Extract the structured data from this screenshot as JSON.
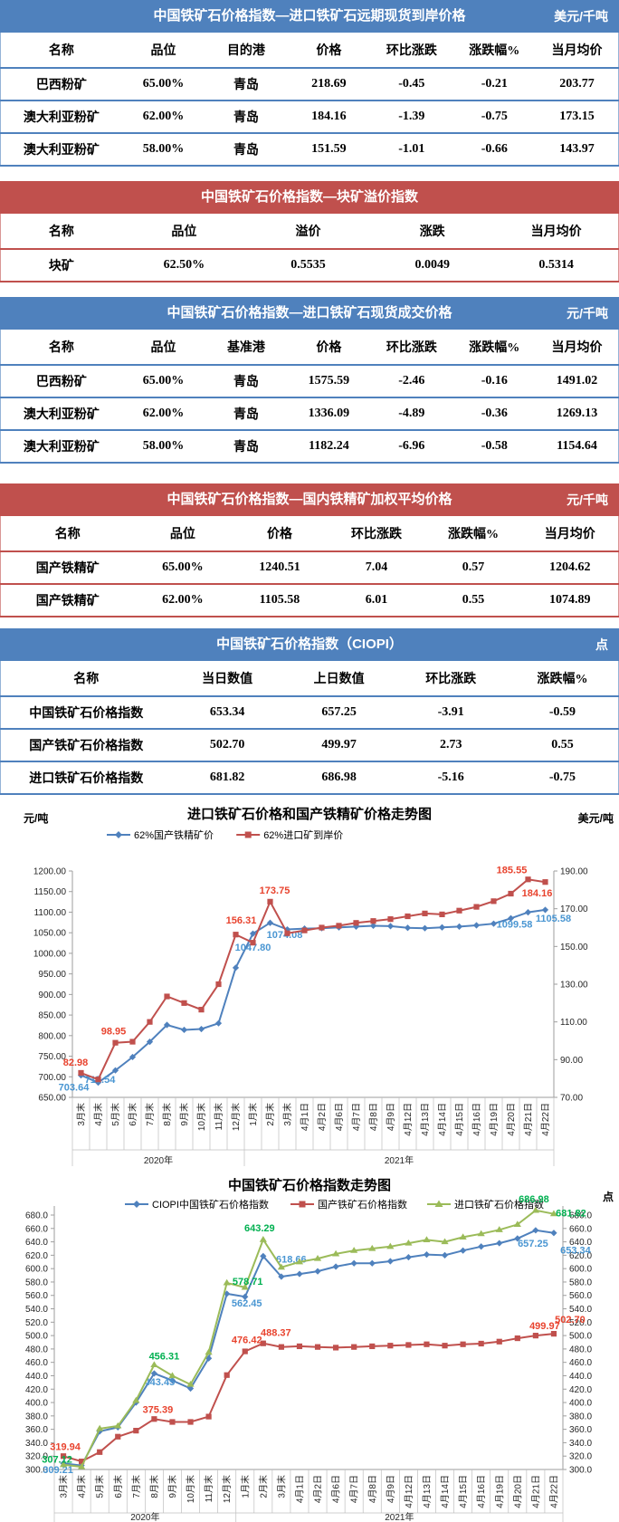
{
  "tables": [
    {
      "title": "中国铁矿石价格指数—进口铁矿石远期现货到岸价格",
      "unit": "美元/千吨",
      "headers": [
        "名称",
        "品位",
        "目的港",
        "价格",
        "环比涨跌",
        "涨跌幅%",
        "当月均价"
      ],
      "rows": [
        [
          "巴西粉矿",
          "65.00%",
          "青岛",
          "218.69",
          "-0.45",
          "-0.21",
          "203.77"
        ],
        [
          "澳大利亚粉矿",
          "62.00%",
          "青岛",
          "184.16",
          "-1.39",
          "-0.75",
          "173.15"
        ],
        [
          "澳大利亚粉矿",
          "58.00%",
          "青岛",
          "151.59",
          "-1.01",
          "-0.66",
          "143.97"
        ]
      ]
    },
    {
      "title": "中国铁矿石价格指数—块矿溢价指数",
      "unit": "",
      "headers": [
        "名称",
        "品位",
        "溢价",
        "涨跌",
        "当月均价"
      ],
      "rows": [
        [
          "块矿",
          "62.50%",
          "0.5535",
          "0.0049",
          "0.5314"
        ]
      ]
    },
    {
      "title": "中国铁矿石价格指数—进口铁矿石现货成交价格",
      "unit": "元/千吨",
      "headers": [
        "名称",
        "品位",
        "基准港",
        "价格",
        "环比涨跌",
        "涨跌幅%",
        "当月均价"
      ],
      "rows": [
        [
          "巴西粉矿",
          "65.00%",
          "青岛",
          "1575.59",
          "-2.46",
          "-0.16",
          "1491.02"
        ],
        [
          "澳大利亚粉矿",
          "62.00%",
          "青岛",
          "1336.09",
          "-4.89",
          "-0.36",
          "1269.13"
        ],
        [
          "澳大利亚粉矿",
          "58.00%",
          "青岛",
          "1182.24",
          "-6.96",
          "-0.58",
          "1154.64"
        ]
      ]
    },
    {
      "title": "中国铁矿石价格指数—国内铁精矿加权平均价格",
      "unit": "元/千吨",
      "headers": [
        "名称",
        "品位",
        "价格",
        "环比涨跌",
        "涨跌幅%",
        "当月均价"
      ],
      "rows": [
        [
          "国产铁精矿",
          "65.00%",
          "1240.51",
          "7.04",
          "0.57",
          "1204.62"
        ],
        [
          "国产铁精矿",
          "62.00%",
          "1105.58",
          "6.01",
          "0.55",
          "1074.89"
        ]
      ]
    },
    {
      "title": "中国铁矿石价格指数（CIOPI）",
      "unit": "点",
      "headers": [
        "名称",
        "当日数值",
        "上日数值",
        "环比涨跌",
        "涨跌幅%"
      ],
      "rows": [
        [
          "中国铁矿石价格指数",
          "653.34",
          "657.25",
          "-3.91",
          "-0.59"
        ],
        [
          "国产铁矿石价格指数",
          "502.70",
          "499.97",
          "2.73",
          "0.55"
        ],
        [
          "进口铁矿石价格指数",
          "681.82",
          "686.98",
          "-5.16",
          "-0.75"
        ]
      ]
    }
  ],
  "chart_data": [
    {
      "type": "line",
      "title": "进口铁矿石价格和国产铁精矿价格走势图",
      "left_unit": "元/吨",
      "right_unit": "美元/吨",
      "grid": false,
      "legend_position": "top",
      "categories": [
        "3月末",
        "4月末",
        "5月末",
        "6月末",
        "7月末",
        "8月末",
        "9月末",
        "10月末",
        "11月末",
        "12月末",
        "1月末",
        "2月末",
        "3月末",
        "4月1日",
        "4月2日",
        "4月6日",
        "4月7日",
        "4月8日",
        "4月9日",
        "4月12日",
        "4月13日",
        "4月14日",
        "4月15日",
        "4月16日",
        "4月19日",
        "4月20日",
        "4月21日",
        "4月22日"
      ],
      "year_groups": [
        {
          "label": "2020年",
          "span": 10
        },
        {
          "label": "2021年",
          "span": 18
        }
      ],
      "axes": [
        {
          "side": "left",
          "min": 650,
          "max": 1200,
          "step": 50,
          "decimals": 2
        },
        {
          "side": "right",
          "min": 70,
          "max": 190,
          "step": 20,
          "decimals": 2
        }
      ],
      "series": [
        {
          "name": "62%国产铁精矿价",
          "axis": "left",
          "marker": "diamond",
          "color": "#4f81bd",
          "label_color": "#4a96d2",
          "values": [
            703.64,
            686,
            715.54,
            748,
            785,
            826,
            814,
            816,
            830,
            965,
            1047.8,
            1074.08,
            1058,
            1060,
            1061,
            1063,
            1065,
            1067,
            1066,
            1062,
            1061,
            1063,
            1065,
            1068,
            1072,
            1085,
            1099.58,
            1105.58
          ],
          "point_labels": [
            {
              "i": 0,
              "text": "703.64",
              "dx": -8,
              "dy": 17
            },
            {
              "i": 2,
              "text": "715.54",
              "dx": -17,
              "dy": 14
            },
            {
              "i": 10,
              "text": "1047.80",
              "dx": 0,
              "dy": 19
            },
            {
              "i": 11,
              "text": "1074.08",
              "dx": 16,
              "dy": 17
            },
            {
              "i": 26,
              "text": "1099.58",
              "dx": -15,
              "dy": 17
            },
            {
              "i": 27,
              "text": "1105.58",
              "dx": 9,
              "dy": 13
            }
          ]
        },
        {
          "name": "62%进口矿到岸价",
          "axis": "right",
          "marker": "square",
          "color": "#c0504d",
          "label_color": "#e8432e",
          "values": [
            82.98,
            79.5,
            98.95,
            99.5,
            110,
            123.5,
            120,
            116.5,
            130,
            156.31,
            152,
            173.75,
            157,
            158.5,
            160,
            161,
            162.5,
            163.5,
            164.5,
            166,
            167.5,
            167,
            169,
            171,
            174,
            178,
            185.55,
            184.16
          ],
          "point_labels": [
            {
              "i": 0,
              "text": "82.98",
              "dx": -6,
              "dy": -8
            },
            {
              "i": 2,
              "text": "98.95",
              "dx": -2,
              "dy": -9
            },
            {
              "i": 9,
              "text": "156.31",
              "dx": 6,
              "dy": -12
            },
            {
              "i": 11,
              "text": "173.75",
              "dx": 5,
              "dy": -9
            },
            {
              "i": 26,
              "text": "185.55",
              "dx": -18,
              "dy": -7
            },
            {
              "i": 27,
              "text": "184.16",
              "dx": -9,
              "dy": 16
            }
          ]
        }
      ]
    },
    {
      "type": "line",
      "title": "中国铁矿石价格指数走势图",
      "left_unit": "",
      "right_unit": "点",
      "grid": false,
      "legend_position": "top",
      "categories": [
        "3月末",
        "4月末",
        "5月末",
        "6月末",
        "7月末",
        "8月末",
        "9月末",
        "10月末",
        "11月末",
        "12月末",
        "1月末",
        "2月末",
        "3月末",
        "4月1日",
        "4月2日",
        "4月6日",
        "4月7日",
        "4月8日",
        "4月9日",
        "4月12日",
        "4月13日",
        "4月14日",
        "4月15日",
        "4月16日",
        "4月19日",
        "4月20日",
        "4月21日",
        "4月22日"
      ],
      "year_groups": [
        {
          "label": "2020年",
          "span": 10
        },
        {
          "label": "2021年",
          "span": 18
        }
      ],
      "axes": [
        {
          "side": "left",
          "min": 300,
          "max": 680,
          "step": 20,
          "decimals": 1
        },
        {
          "side": "right",
          "min": 300,
          "max": 680,
          "step": 20,
          "decimals": 1
        }
      ],
      "series": [
        {
          "name": "CIOPI中国铁矿石价格指数",
          "axis": "left",
          "marker": "diamond",
          "color": "#4f81bd",
          "label_color": "#4a96d2",
          "values": [
            309.21,
            306,
            357,
            363,
            400,
            443.45,
            433,
            421,
            466,
            562.45,
            558,
            618.66,
            588,
            592,
            596,
            603,
            608,
            608,
            611,
            617,
            621,
            620,
            627,
            633,
            638,
            645,
            657.25,
            653.34
          ],
          "point_labels": [
            {
              "i": 0,
              "text": "309.21",
              "dx": -6,
              "dy": 11
            },
            {
              "i": 5,
              "text": "443.45",
              "dx": 6,
              "dy": 13
            },
            {
              "i": 9,
              "text": "562.45",
              "dx": 22,
              "dy": 14
            },
            {
              "i": 11,
              "text": "618.66",
              "dx": 31,
              "dy": 7
            },
            {
              "i": 26,
              "text": "657.25",
              "dx": -3,
              "dy": 18
            },
            {
              "i": 27,
              "text": "653.34",
              "dx": 24,
              "dy": 23
            }
          ]
        },
        {
          "name": "国产铁矿石价格指数",
          "axis": "left",
          "marker": "square",
          "color": "#c0504d",
          "label_color": "#e8432e",
          "values": [
            319.94,
            312,
            326,
            349,
            358,
            375.39,
            371,
            371,
            379,
            441,
            476.42,
            488.37,
            483,
            484,
            483,
            482,
            483,
            484,
            485,
            486,
            487,
            485,
            487,
            488,
            491,
            496,
            499.97,
            502.7
          ],
          "point_labels": [
            {
              "i": 0,
              "text": "319.94",
              "dx": 2,
              "dy": -7
            },
            {
              "i": 5,
              "text": "375.39",
              "dx": 4,
              "dy": -7
            },
            {
              "i": 10,
              "text": "476.42",
              "dx": 2,
              "dy": -9
            },
            {
              "i": 11,
              "text": "488.37",
              "dx": 14,
              "dy": -8
            },
            {
              "i": 26,
              "text": "499.97",
              "dx": 10,
              "dy": -7
            },
            {
              "i": 27,
              "text": "502.70",
              "dx": 18,
              "dy": -12
            }
          ]
        },
        {
          "name": "进口铁矿石价格指数",
          "axis": "left",
          "marker": "triangle",
          "color": "#9bbb59",
          "label_color": "#00b050",
          "values": [
            307.12,
            304,
            361,
            365,
            403,
            456.31,
            440,
            427,
            475,
            578.71,
            572,
            643.29,
            602,
            610,
            615,
            622,
            627,
            630,
            633,
            638,
            643,
            640,
            647,
            652,
            658,
            666,
            686.98,
            681.82
          ],
          "point_labels": [
            {
              "i": 0,
              "text": "307.12",
              "dx": -7,
              "dy": -2
            },
            {
              "i": 5,
              "text": "456.31",
              "dx": 11,
              "dy": -6
            },
            {
              "i": 9,
              "text": "578.71",
              "dx": 23,
              "dy": 2
            },
            {
              "i": 11,
              "text": "643.29",
              "dx": -4,
              "dy": -9
            },
            {
              "i": 26,
              "text": "686.98",
              "dx": -2,
              "dy": -9
            },
            {
              "i": 27,
              "text": "681.82",
              "dx": 19,
              "dy": 3
            }
          ]
        }
      ]
    }
  ]
}
